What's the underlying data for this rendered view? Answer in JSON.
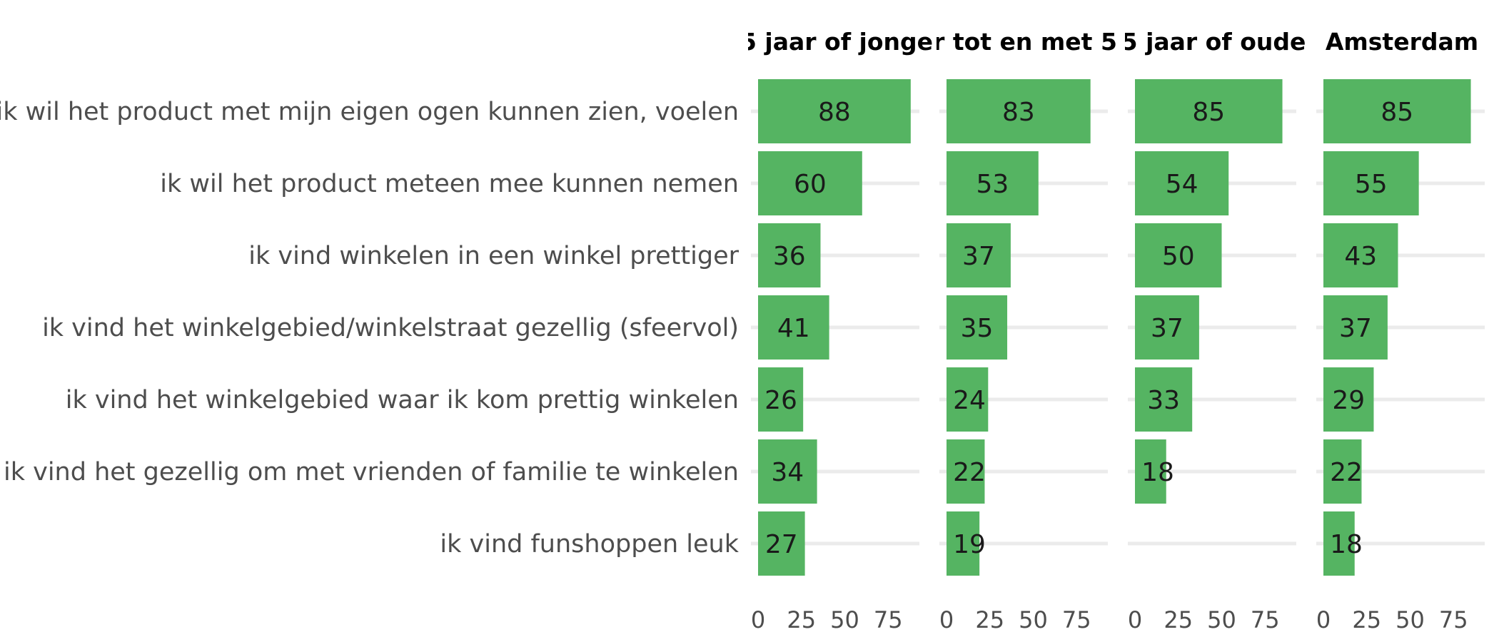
{
  "chart_data": {
    "type": "bar",
    "orientation": "horizontal",
    "categories": [
      "ik wil het product met mijn eigen ogen kunnen zien, voelen",
      "ik wil het product meteen mee kunnen nemen",
      "ik vind winkelen in een winkel prettiger",
      "ik vind het winkelgebied/winkelstraat gezellig (sfeervol)",
      "ik vind het winkelgebied waar ik kom prettig winkelen",
      "ik vind het gezellig om met vrienden of familie te winkelen",
      "ik vind funshoppen leuk"
    ],
    "facets": [
      {
        "name": "5 jaar of jonge",
        "values": [
          88,
          60,
          36,
          41,
          26,
          34,
          27
        ]
      },
      {
        "name": "r tot en met 5",
        "values": [
          83,
          53,
          37,
          35,
          24,
          22,
          19
        ]
      },
      {
        "name": "5 jaar of oude",
        "values": [
          85,
          54,
          50,
          37,
          33,
          18,
          null
        ]
      },
      {
        "name": "Amsterdam",
        "values": [
          85,
          55,
          43,
          37,
          29,
          22,
          18
        ]
      }
    ],
    "xticks": [
      "0",
      "25",
      "50",
      "75"
    ],
    "xlim": [
      0,
      92
    ],
    "grid": true,
    "legend": "none"
  },
  "colors": {
    "bar": "#55b462",
    "grid": "#ebebeb",
    "label": "#4d4d4d"
  }
}
